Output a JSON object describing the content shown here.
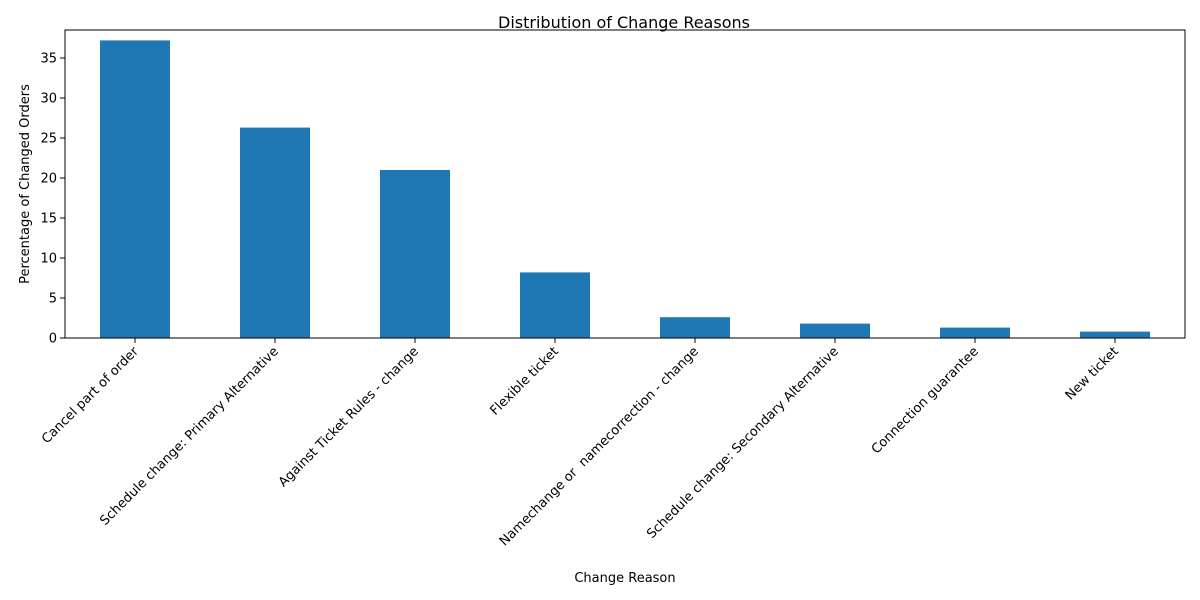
{
  "chart_data": {
    "type": "bar",
    "title": "Distribution of Change Reasons",
    "xlabel": "Change Reason",
    "ylabel": "Percentage of Changed Orders",
    "categories": [
      "Cancel part of order",
      "Schedule change: Primary Alternative",
      "Against Ticket Rules - change",
      "Flexible ticket",
      "Namechange or  namecorrection - change",
      "Schedule change: Secondary Alternative",
      "Connection guarantee",
      "New ticket"
    ],
    "values": [
      37.2,
      26.3,
      21.0,
      8.2,
      2.6,
      1.8,
      1.3,
      0.8
    ],
    "ylim": [
      0,
      38.5
    ],
    "yticks": [
      0,
      5,
      10,
      15,
      20,
      25,
      30,
      35
    ],
    "bar_color": "#1f77b4",
    "grid": false,
    "legend": false
  }
}
